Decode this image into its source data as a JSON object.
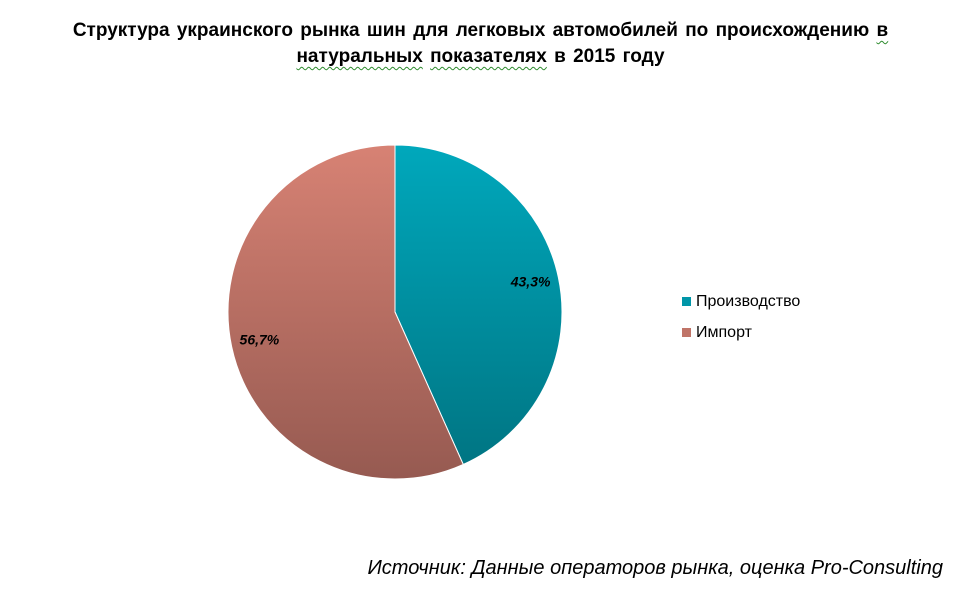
{
  "chart_data": {
    "type": "pie",
    "title_lines": [
      "Структура украинского рынка шин для легковых автомобилей по происхождению в",
      "натуральных показателях в 2015 году"
    ],
    "categories": [
      "Производство",
      "Импорт"
    ],
    "values": [
      43.3,
      56.7
    ],
    "data_labels": [
      "43,3%",
      "56,7%"
    ],
    "colors": [
      "#0096A8",
      "#C07468"
    ],
    "legend_position": "right",
    "source": "Источник: Данные операторов рынка, оценка Pro-Consulting"
  }
}
